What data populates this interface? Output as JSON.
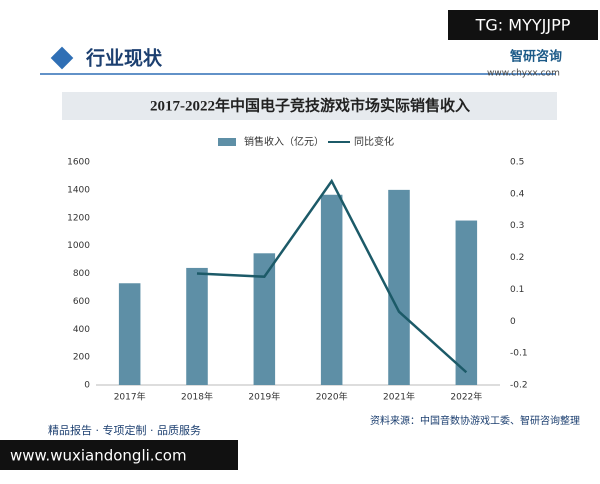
{
  "header": {
    "section": "行业现状",
    "brand": "智研咨询",
    "url": "www.chyxx.com",
    "tag": "TG: MYYJJPP"
  },
  "chart_data": {
    "type": "bar",
    "title": "2017-2022年中国电子竞技游戏市场实际销售收入",
    "categories": [
      "2017年",
      "2018年",
      "2019年",
      "2020年",
      "2021年",
      "2022年"
    ],
    "series": [
      {
        "name": "销售收入（亿元）",
        "type": "bar",
        "color": "#5e8fa6",
        "values": [
          730,
          840,
          945,
          1365,
          1400,
          1180
        ]
      },
      {
        "name": "同比变化",
        "type": "line",
        "axis": "y2",
        "color": "#1c5a68",
        "values": [
          null,
          0.15,
          0.14,
          0.44,
          0.03,
          -0.16
        ]
      }
    ],
    "ylim": [
      0,
      1600
    ],
    "yticks": [
      0,
      200,
      400,
      600,
      800,
      1000,
      1200,
      1400,
      1600
    ],
    "y2lim": [
      -0.2,
      0.5
    ],
    "y2ticks": [
      -0.2,
      -0.1,
      0,
      0.1,
      0.2,
      0.3,
      0.4,
      0.5
    ]
  },
  "footer": {
    "slogan": "精品报告 · 专项定制 · 品质服务",
    "source": "资料来源：中国音数协游戏工委、智研咨询整理",
    "watermark_url": "www.wuxiandongli.com"
  }
}
